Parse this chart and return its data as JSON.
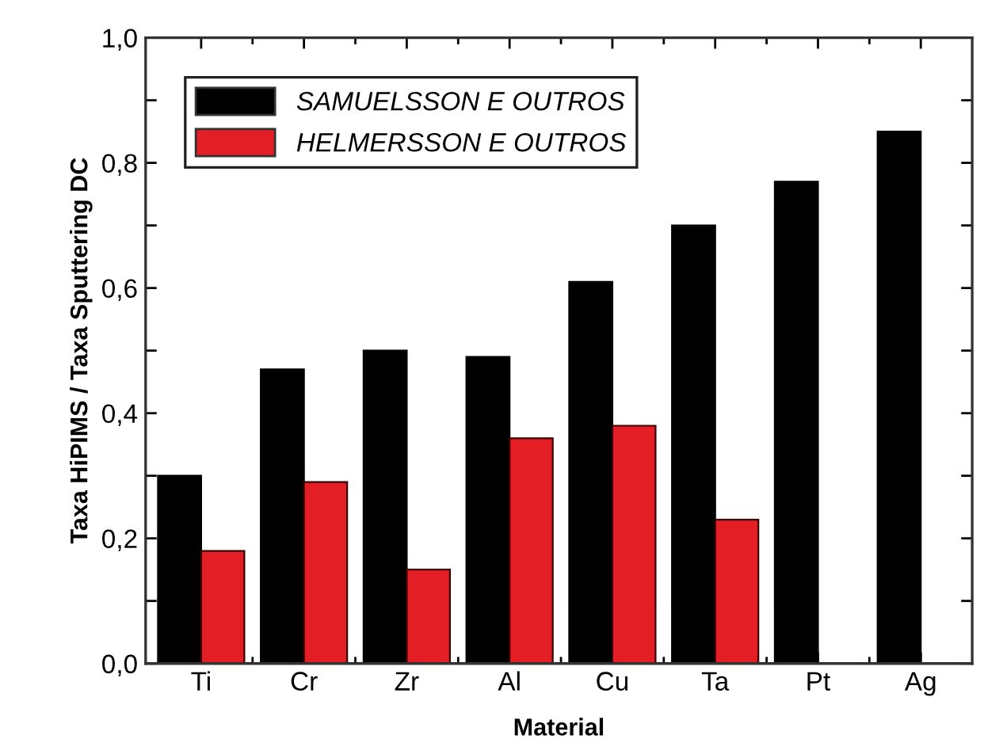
{
  "chart_data": {
    "type": "bar",
    "xlabel": "Material",
    "ylabel": "Taxa HiPIMS / Taxa Sputtering DC",
    "categories": [
      "Ti",
      "Cr",
      "Zr",
      "Al",
      "Cu",
      "Ta",
      "Pt",
      "Ag"
    ],
    "series": [
      {
        "name": "SAMUELSSON E OUTROS",
        "color": "#000000",
        "values": [
          0.3,
          0.47,
          0.5,
          0.49,
          0.61,
          0.7,
          0.77,
          0.85
        ]
      },
      {
        "name": "HELMERSSON E OUTROS",
        "color": "#e31e24",
        "values": [
          0.18,
          0.29,
          0.15,
          0.36,
          0.38,
          0.23,
          null,
          null
        ]
      }
    ],
    "ylim": [
      0,
      1
    ],
    "yticks": [
      {
        "value": 0,
        "label": "0,0"
      },
      {
        "value": 0.1,
        "label": null
      },
      {
        "value": 0.2,
        "label": "0,2"
      },
      {
        "value": 0.3,
        "label": null
      },
      {
        "value": 0.4,
        "label": "0,4"
      },
      {
        "value": 0.5,
        "label": null
      },
      {
        "value": 0.6,
        "label": "0,6"
      },
      {
        "value": 0.7,
        "label": null
      },
      {
        "value": 0.8,
        "label": "0,8"
      },
      {
        "value": 0.9,
        "label": null
      },
      {
        "value": 1,
        "label": "1,0"
      }
    ],
    "grid": false,
    "legend": "top left"
  }
}
